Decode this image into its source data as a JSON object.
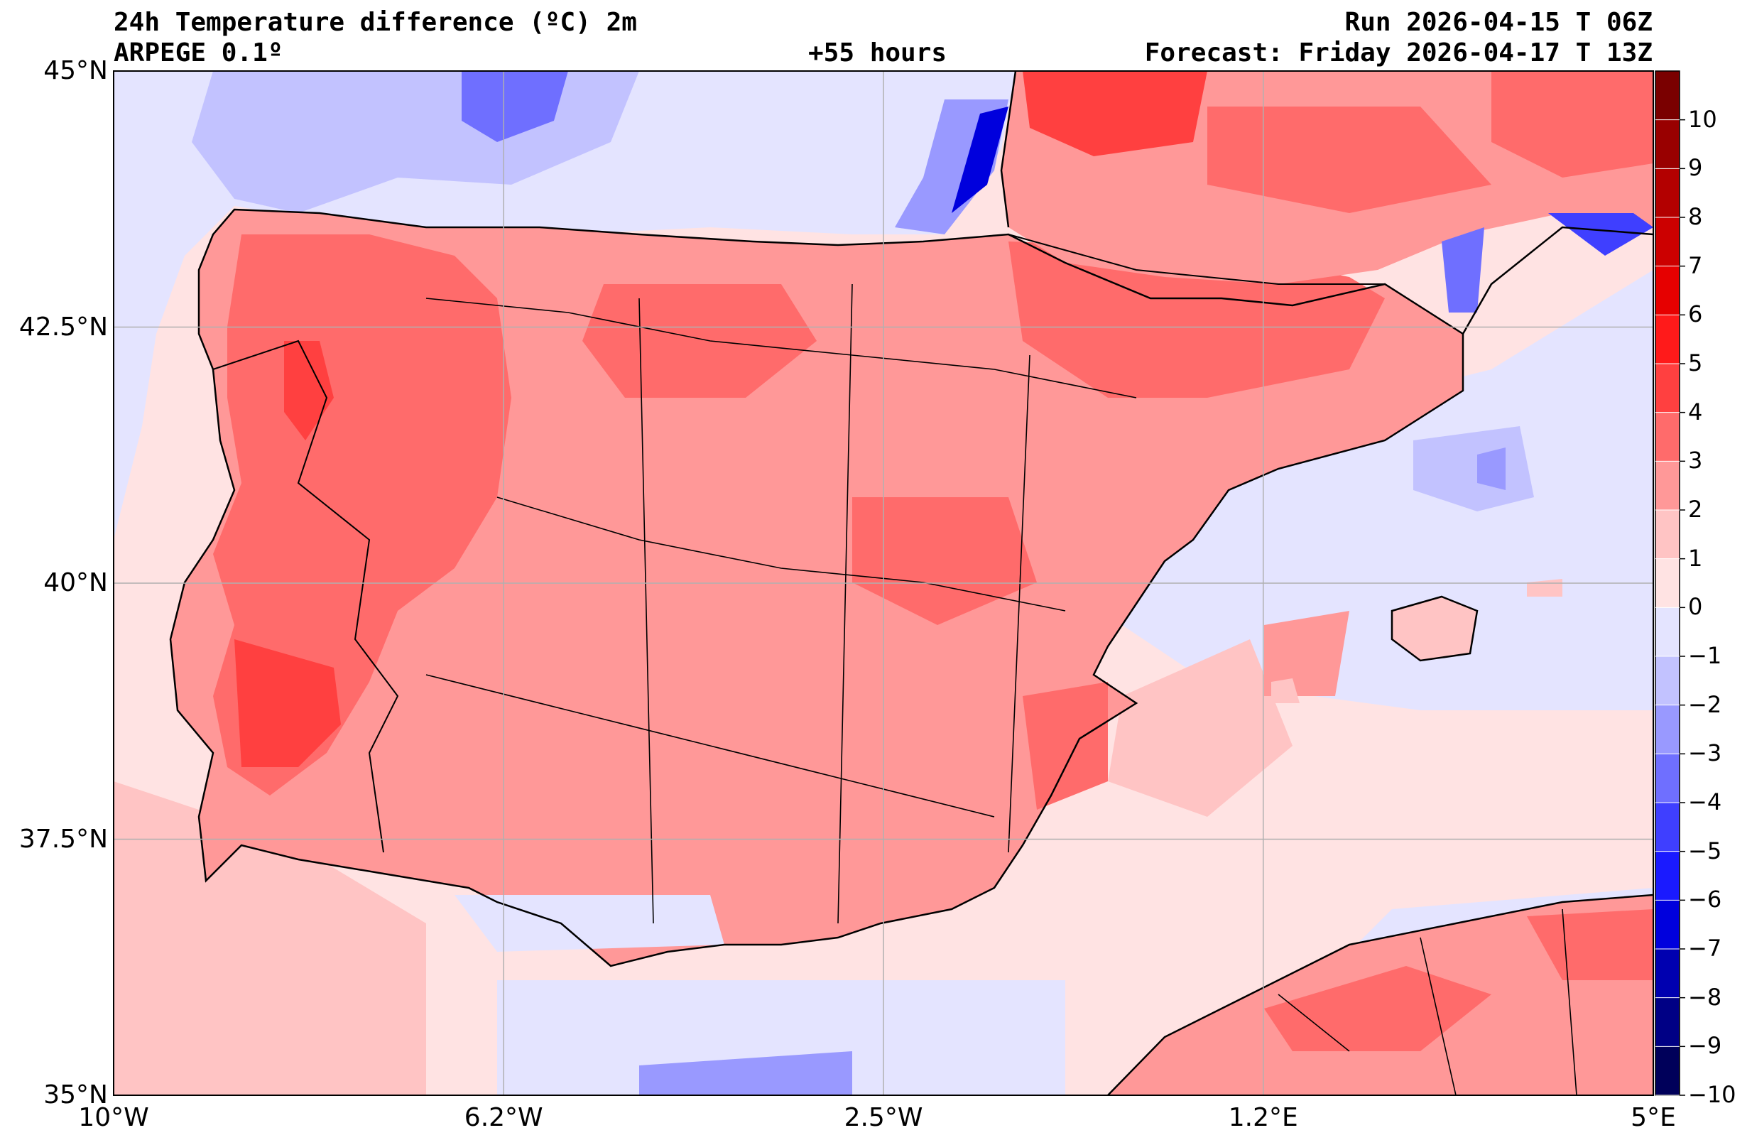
{
  "header": {
    "title": "24h Temperature difference (ºC) 2m",
    "model": "ARPEGE 0.1º",
    "lead": "+55 hours",
    "run": "Run 2026-04-15 T 06Z",
    "forecast": "Forecast: Friday 2026-04-17 T 13Z"
  },
  "map": {
    "lon_range": [
      -10,
      5
    ],
    "lat_range": [
      35,
      45
    ],
    "lon_ticks": [
      {
        "value": -10,
        "label": "10°W"
      },
      {
        "value": -6.2,
        "label": "6.2°W"
      },
      {
        "value": -2.5,
        "label": "2.5°W"
      },
      {
        "value": 1.2,
        "label": "1.2°E"
      },
      {
        "value": 5,
        "label": "5°E"
      }
    ],
    "lat_ticks": [
      {
        "value": 45,
        "label": "45°N"
      },
      {
        "value": 42.5,
        "label": "42.5°N"
      },
      {
        "value": 40,
        "label": "40°N"
      },
      {
        "value": 37.5,
        "label": "37.5°N"
      },
      {
        "value": 35,
        "label": "35°N"
      }
    ],
    "grid": true
  },
  "colorbar": {
    "labels": [
      "10",
      "9",
      "8",
      "7",
      "6",
      "5",
      "4",
      "3",
      "2",
      "1",
      "0",
      "−1",
      "−2",
      "−3",
      "−4",
      "−5",
      "−6",
      "−7",
      "−8",
      "−9",
      "−10"
    ],
    "colors": [
      "#7a0000",
      "#990000",
      "#b30000",
      "#cc0000",
      "#e60000",
      "#ff1a1a",
      "#ff4040",
      "#ff6b6b",
      "#ff9898",
      "#ffc4c4",
      "#ffe3e3",
      "#e4e4ff",
      "#c2c2ff",
      "#9999ff",
      "#6f6fff",
      "#3f3fff",
      "#1a1aff",
      "#0000dd",
      "#0000b0",
      "#000085",
      "#00005a"
    ]
  }
}
